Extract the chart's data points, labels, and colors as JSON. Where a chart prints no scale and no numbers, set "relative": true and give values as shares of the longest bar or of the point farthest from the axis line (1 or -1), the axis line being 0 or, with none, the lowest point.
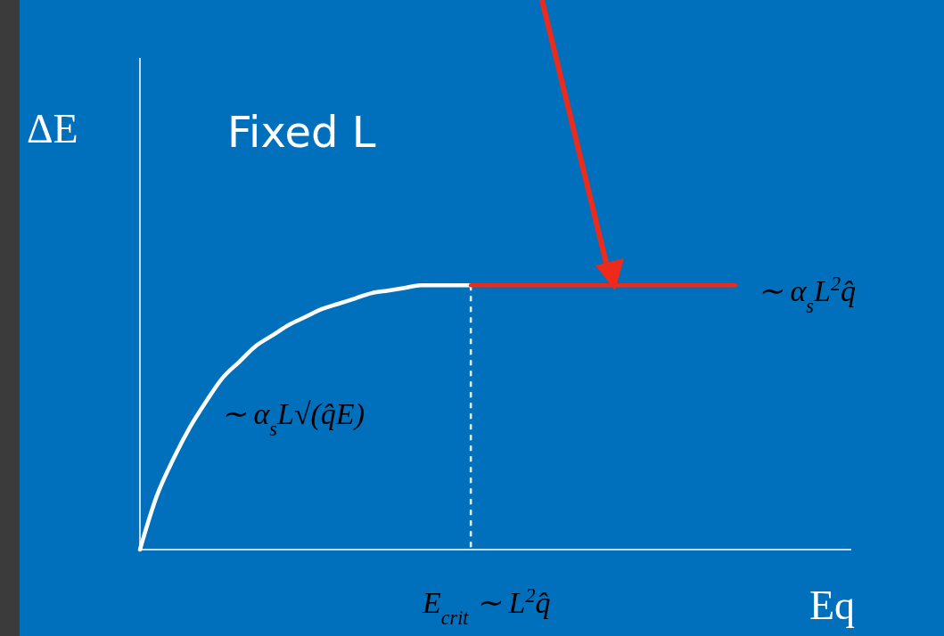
{
  "chart_data": {
    "type": "line",
    "relative": true,
    "title": "Fixed L",
    "ylabel": "ΔE",
    "xlabel": "Eq",
    "categories": [
      null,
      null,
      null,
      null,
      null,
      null,
      null,
      null,
      null,
      null,
      null,
      null,
      null,
      null,
      null,
      null,
      null,
      null,
      null,
      null,
      null,
      null,
      null,
      null,
      null,
      null,
      null,
      null,
      null,
      null,
      null,
      null,
      null,
      null,
      null,
      null,
      null,
      null,
      null,
      null,
      null,
      null,
      null,
      null
    ],
    "series": [
      {
        "color": "#ffffff",
        "values": [
          0,
          0.2,
          0.34,
          0.46,
          0.56,
          0.65,
          0.71,
          0.77,
          0.81,
          0.85,
          0.88,
          0.91,
          0.93,
          0.95,
          0.97,
          0.98,
          0.99,
          1,
          1,
          1,
          1,
          null,
          null,
          null,
          null,
          null,
          null,
          null,
          null,
          null,
          null,
          null,
          null,
          null,
          null,
          null,
          null,
          null,
          null,
          null,
          null,
          null,
          null,
          null
        ]
      },
      {
        "color": "#ee2a1b",
        "values": [
          null,
          null,
          null,
          null,
          null,
          null,
          null,
          null,
          null,
          null,
          null,
          null,
          null,
          null,
          null,
          null,
          null,
          null,
          null,
          null,
          1,
          1,
          1,
          1,
          1,
          1,
          1,
          1,
          1,
          1,
          1,
          1,
          1,
          1,
          1,
          1,
          1,
          null,
          null,
          null,
          null,
          null,
          null,
          null
        ]
      }
    ],
    "annotations": [
      "∼ α$_{s}$L√(q̂E)",
      "∼ α$_{s}$L$^{2}$q̂",
      "E$_{crit}$ ∼ L$^{2}$q̂"
    ],
    "grid": false,
    "marker": "none",
    "line_style": "solid"
  }
}
